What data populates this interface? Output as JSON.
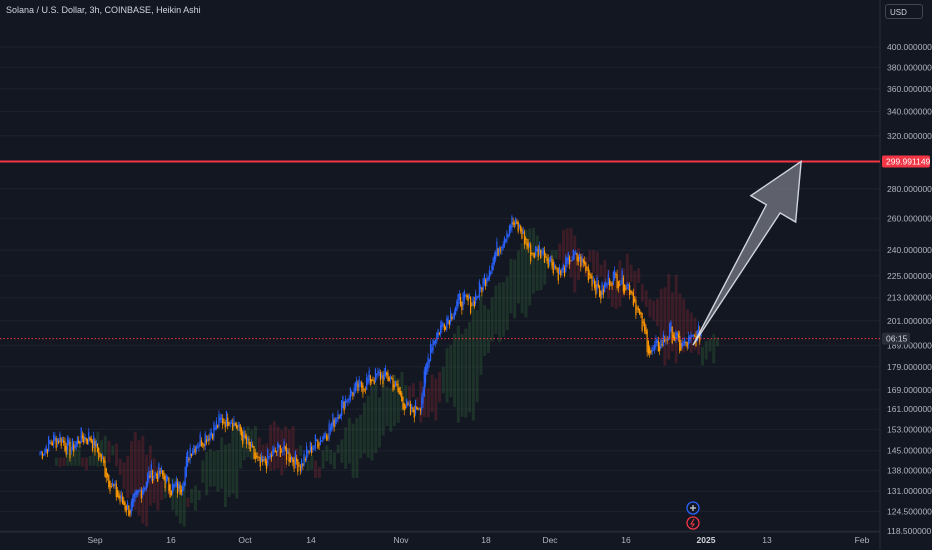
{
  "title": "Solana / U.S. Dollar, 3h, COINBASE, Heikin Ashi",
  "currency_label": "USD",
  "colors": {
    "background": "#131722",
    "bull": "#2962ff",
    "bear": "#ff9800",
    "resistance": "#f23645",
    "cloud_bull": "#4caf50",
    "cloud_bear": "#f23645",
    "arrow_fill": "#787b86"
  },
  "chart_data": {
    "type": "candlestick",
    "scale": "log",
    "ylim": [
      118.5,
      440
    ],
    "y_ticks": [
      {
        "value": 400,
        "label": "400.000000"
      },
      {
        "value": 380,
        "label": "380.000000"
      },
      {
        "value": 360,
        "label": "360.000000"
      },
      {
        "value": 340,
        "label": "340.000000"
      },
      {
        "value": 320,
        "label": "320.000000"
      },
      {
        "value": 280,
        "label": "280.000000"
      },
      {
        "value": 260,
        "label": "260.000000"
      },
      {
        "value": 240,
        "label": "240.000000"
      },
      {
        "value": 225,
        "label": "225.000000"
      },
      {
        "value": 213,
        "label": "213.000000"
      },
      {
        "value": 201,
        "label": "201.000000"
      },
      {
        "value": 189,
        "label": "189.000000"
      },
      {
        "value": 179,
        "label": "179.000000"
      },
      {
        "value": 169,
        "label": "169.000000"
      },
      {
        "value": 161,
        "label": "161.000000"
      },
      {
        "value": 153,
        "label": "153.000000"
      },
      {
        "value": 145,
        "label": "145.000000"
      },
      {
        "value": 138,
        "label": "138.000000"
      },
      {
        "value": 131,
        "label": "131.000000"
      },
      {
        "value": 124.5,
        "label": "124.500000"
      },
      {
        "value": 118.5,
        "label": "118.500000"
      }
    ],
    "x_ticks": [
      {
        "label": "Sep",
        "bold": false
      },
      {
        "label": "16",
        "bold": false
      },
      {
        "label": "Oct",
        "bold": false
      },
      {
        "label": "14",
        "bold": false
      },
      {
        "label": "Nov",
        "bold": false
      },
      {
        "label": "18",
        "bold": false
      },
      {
        "label": "Dec",
        "bold": false
      },
      {
        "label": "16",
        "bold": false
      },
      {
        "label": "2025",
        "bold": true
      },
      {
        "label": "13",
        "bold": false
      },
      {
        "label": "Feb",
        "bold": false
      }
    ],
    "price_path": [
      {
        "date": "Aug 21",
        "price": 144
      },
      {
        "date": "Aug 23",
        "price": 148
      },
      {
        "date": "Aug 25",
        "price": 150
      },
      {
        "date": "Aug 27",
        "price": 145
      },
      {
        "date": "Aug 29",
        "price": 150
      },
      {
        "date": "Aug 31",
        "price": 150
      },
      {
        "date": "Sep 2",
        "price": 143
      },
      {
        "date": "Sep 4",
        "price": 134
      },
      {
        "date": "Sep 6",
        "price": 128
      },
      {
        "date": "Sep 8",
        "price": 125
      },
      {
        "date": "Sep 10",
        "price": 131
      },
      {
        "date": "Sep 12",
        "price": 137
      },
      {
        "date": "Sep 14",
        "price": 137
      },
      {
        "date": "Sep 16",
        "price": 132
      },
      {
        "date": "Sep 18",
        "price": 132
      },
      {
        "date": "Sep 20",
        "price": 146
      },
      {
        "date": "Sep 22",
        "price": 149
      },
      {
        "date": "Sep 24",
        "price": 152
      },
      {
        "date": "Sep 26",
        "price": 156
      },
      {
        "date": "Sep 28",
        "price": 158
      },
      {
        "date": "Sep 30",
        "price": 152
      },
      {
        "date": "Oct 2",
        "price": 145
      },
      {
        "date": "Oct 4",
        "price": 139
      },
      {
        "date": "Oct 6",
        "price": 143
      },
      {
        "date": "Oct 8",
        "price": 146
      },
      {
        "date": "Oct 10",
        "price": 143
      },
      {
        "date": "Oct 12",
        "price": 140
      },
      {
        "date": "Oct 14",
        "price": 146
      },
      {
        "date": "Oct 16",
        "price": 150
      },
      {
        "date": "Oct 18",
        "price": 154
      },
      {
        "date": "Oct 20",
        "price": 162
      },
      {
        "date": "Oct 22",
        "price": 168
      },
      {
        "date": "Oct 24",
        "price": 170
      },
      {
        "date": "Oct 26",
        "price": 174
      },
      {
        "date": "Oct 28",
        "price": 175
      },
      {
        "date": "Oct 30",
        "price": 174
      },
      {
        "date": "Nov 1",
        "price": 166
      },
      {
        "date": "Nov 3",
        "price": 159
      },
      {
        "date": "Nov 5",
        "price": 164
      },
      {
        "date": "Nov 7",
        "price": 190
      },
      {
        "date": "Nov 9",
        "price": 198
      },
      {
        "date": "Nov 11",
        "price": 205
      },
      {
        "date": "Nov 13",
        "price": 212
      },
      {
        "date": "Nov 15",
        "price": 210
      },
      {
        "date": "Nov 17",
        "price": 218
      },
      {
        "date": "Nov 19",
        "price": 232
      },
      {
        "date": "Nov 21",
        "price": 245
      },
      {
        "date": "Nov 23",
        "price": 258
      },
      {
        "date": "Nov 25",
        "price": 252
      },
      {
        "date": "Nov 27",
        "price": 238
      },
      {
        "date": "Nov 29",
        "price": 240
      },
      {
        "date": "Dec 1",
        "price": 234
      },
      {
        "date": "Dec 3",
        "price": 226
      },
      {
        "date": "Dec 5",
        "price": 236
      },
      {
        "date": "Dec 7",
        "price": 234
      },
      {
        "date": "Dec 9",
        "price": 225
      },
      {
        "date": "Dec 11",
        "price": 215
      },
      {
        "date": "Dec 13",
        "price": 225
      },
      {
        "date": "Dec 15",
        "price": 223
      },
      {
        "date": "Dec 17",
        "price": 218
      },
      {
        "date": "Dec 19",
        "price": 200
      },
      {
        "date": "Dec 21",
        "price": 185
      },
      {
        "date": "Dec 23",
        "price": 190
      },
      {
        "date": "Dec 25",
        "price": 196
      },
      {
        "date": "Dec 27",
        "price": 188
      },
      {
        "date": "Dec 29",
        "price": 191
      },
      {
        "date": "Dec 31",
        "price": 195
      }
    ],
    "resistance": {
      "value": 299.991149,
      "label": "299.991149"
    },
    "last_price": {
      "value": 192.2,
      "label": "06:15"
    },
    "projection_arrow": {
      "from": {
        "date": "Dec 31",
        "price": 190
      },
      "to": {
        "date": "Jan 20",
        "price": 300
      }
    },
    "icons": [
      "plus-circle-icon",
      "lightning-icon"
    ]
  }
}
